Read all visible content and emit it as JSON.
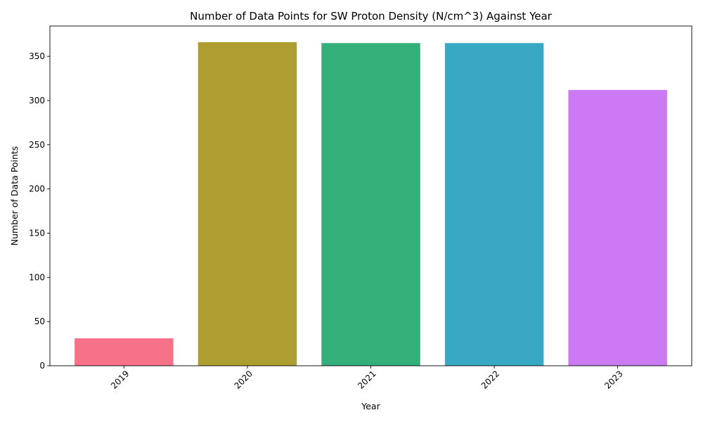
{
  "chart_data": {
    "type": "bar",
    "title": "Number of Data Points for SW Proton Density (N/cm^3)  Against Year",
    "xlabel": "Year",
    "ylabel": "Number of Data Points",
    "categories": [
      "2019",
      "2020",
      "2021",
      "2022",
      "2023"
    ],
    "values": [
      31,
      366,
      365,
      365,
      312
    ],
    "colors": [
      "#f77189",
      "#ae9d31",
      "#33b07a",
      "#38a9c5",
      "#cc7af4"
    ],
    "ylim": [
      0,
      384.3
    ],
    "yticks": [
      0,
      50,
      100,
      150,
      200,
      250,
      300,
      350
    ],
    "grid": false,
    "xtick_rotation": 45
  }
}
